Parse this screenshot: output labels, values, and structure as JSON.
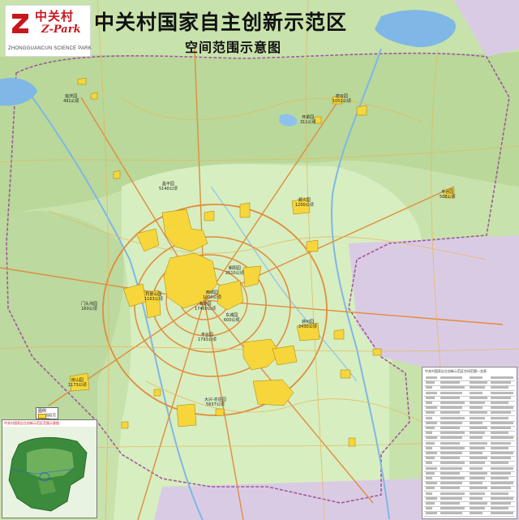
{
  "header": {
    "title": "中关村国家自主创新示范区",
    "subtitle": "空间范围示意图"
  },
  "logo": {
    "name_cn": "中关村",
    "brand_en": "Z-Park",
    "tagline": "ZHONGGUANCUN SCIENCE PARK"
  },
  "parks": [
    {
      "name": "延庆园",
      "area": "491公顷"
    },
    {
      "name": "密云园",
      "area": "1001公顷"
    },
    {
      "name": "怀柔园",
      "area": "311公顷"
    },
    {
      "name": "昌平园",
      "area": "5140公顷"
    },
    {
      "name": "平谷园",
      "area": "508公顷"
    },
    {
      "name": "顺义园",
      "area": "1200公顷"
    },
    {
      "name": "朝阳园",
      "area": "2510公顷"
    },
    {
      "name": "海淀园",
      "area": "17400公顷"
    },
    {
      "name": "石景山园",
      "area": "1163公顷"
    },
    {
      "name": "门头沟园",
      "area": "160公顷"
    },
    {
      "name": "西城园",
      "area": "1000公顷"
    },
    {
      "name": "东城园",
      "area": "600公顷"
    },
    {
      "name": "丰台园",
      "area": "1793公顷"
    },
    {
      "name": "通州园",
      "area": "2430公顷"
    },
    {
      "name": "房山园",
      "area": "1173公顷"
    },
    {
      "name": "大兴-亦庄园",
      "area": "5637公顷"
    }
  ],
  "legend": {
    "title": "图例",
    "item": "园区范围"
  },
  "inset": {
    "caption": "中关村国家自主创新示范区范围示意图"
  },
  "table": {
    "title": "中关村国家自主创新示范区空间范围一览表"
  },
  "colors": {
    "park_fill": "#f6d63b",
    "road_major": "#e08d3c",
    "road_minor": "#e6b85a",
    "water": "#7fb7e6",
    "mountain": "#bfd9a2",
    "plain": "#d8efc1",
    "out_region": "#d9cbe4",
    "brand_red": "#c8161d"
  }
}
